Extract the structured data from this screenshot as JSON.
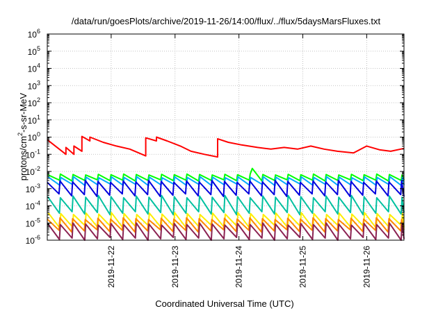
{
  "chart_data": {
    "type": "line",
    "title": "/data/run/goesPlots/archive/2019-11-26/14:00/flux/../flux/5daysMarsFluxes.txt",
    "xlabel": "Coordinated Universal Time (UTC)",
    "ylabel": "protons/cm2-s-sr-MeV",
    "y_scale": "log",
    "ylim": [
      1e-06,
      1000000.0
    ],
    "y_tick_exponents": [
      -6,
      -5,
      -4,
      -3,
      -2,
      -1,
      0,
      1,
      2,
      3,
      4,
      5,
      6
    ],
    "xlim": [
      "2019-11-21T00:00",
      "2019-11-26T14:00"
    ],
    "x_ticks": [
      "2019-11-22",
      "2019-11-23",
      "2019-11-24",
      "2019-11-25",
      "2019-11-26"
    ],
    "grid": true,
    "legend": "none",
    "series": [
      {
        "color": "#ff0000",
        "pattern": "decay",
        "x": [
          "2019-11-21T00:00",
          "2019-11-21T07:00",
          "2019-11-21T07:00",
          "2019-11-21T10:00",
          "2019-11-21T10:00",
          "2019-11-21T13:00",
          "2019-11-21T13:00",
          "2019-11-21T16:00",
          "2019-11-21T16:00",
          "2019-11-21T21:00",
          "2019-11-22T02:00",
          "2019-11-22T07:00",
          "2019-11-22T13:00",
          "2019-11-22T13:00",
          "2019-11-22T17:00",
          "2019-11-22T17:00",
          "2019-11-22T21:00",
          "2019-11-23T02:00",
          "2019-11-23T06:00",
          "2019-11-23T11:00",
          "2019-11-23T16:00",
          "2019-11-23T16:00",
          "2019-11-23T20:00",
          "2019-11-24T01:00",
          "2019-11-24T07:00",
          "2019-11-24T12:00",
          "2019-11-24T17:00",
          "2019-11-24T22:00",
          "2019-11-25T03:00",
          "2019-11-25T08:00",
          "2019-11-25T13:00",
          "2019-11-25T19:00",
          "2019-11-26T00:00",
          "2019-11-26T05:00",
          "2019-11-26T09:00",
          "2019-11-26T14:00"
        ],
        "values": [
          0.7,
          0.1,
          0.25,
          0.1,
          0.3,
          0.15,
          1.1,
          0.6,
          1.0,
          0.5,
          0.3,
          0.2,
          0.08,
          0.9,
          0.6,
          1.0,
          0.6,
          0.3,
          0.15,
          0.1,
          0.07,
          0.8,
          0.5,
          0.35,
          0.25,
          0.2,
          0.25,
          0.2,
          0.3,
          0.2,
          0.15,
          0.12,
          0.3,
          0.18,
          0.15,
          0.22
        ]
      },
      {
        "color": "#00ff00",
        "pattern": "sawtooth",
        "range": [
          0.0028,
          0.007
        ],
        "peak": {
          "x": "2019-11-24T05:00",
          "value": 0.015
        }
      },
      {
        "color": "#00aaff",
        "pattern": "sawtooth",
        "range": [
          0.0015,
          0.005
        ]
      },
      {
        "color": "#0000dd",
        "pattern": "sawtooth",
        "range": [
          0.00035,
          0.003
        ]
      },
      {
        "color": "#00c0a0",
        "pattern": "sawtooth",
        "range": [
          3e-05,
          0.0004
        ]
      },
      {
        "color": "#ffee00",
        "pattern": "sawtooth",
        "range": [
          5e-06,
          4e-05
        ]
      },
      {
        "color": "#ff8800",
        "pattern": "sawtooth",
        "range": [
          3e-06,
          2e-05
        ]
      },
      {
        "color": "#8b2252",
        "pattern": "sawtooth",
        "range": [
          1e-06,
          1e-05
        ]
      }
    ]
  }
}
